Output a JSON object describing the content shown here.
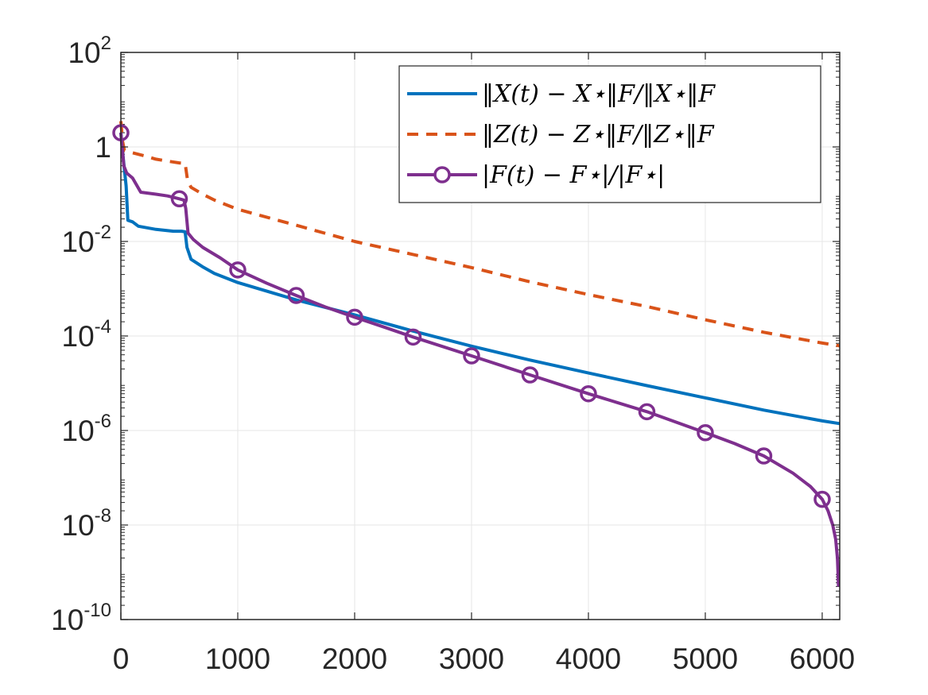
{
  "chart_data": {
    "type": "line",
    "title": "",
    "xlabel": "",
    "ylabel": "",
    "xlim": [
      0,
      6150
    ],
    "ylim": [
      1e-10,
      100
    ],
    "yscale": "log",
    "grid": true,
    "legend_position": "top-right",
    "x_ticks": [
      0,
      1000,
      2000,
      3000,
      4000,
      5000,
      6000
    ],
    "x_tick_labels": [
      "0",
      "1000",
      "2000",
      "3000",
      "4000",
      "5000",
      "6000"
    ],
    "y_ticks": [
      {
        "value": 1e-10,
        "base": "10",
        "exp": "-10"
      },
      {
        "value": 1e-08,
        "base": "10",
        "exp": "-8"
      },
      {
        "value": 1e-06,
        "base": "10",
        "exp": "-6"
      },
      {
        "value": 0.0001,
        "base": "10",
        "exp": "-4"
      },
      {
        "value": 0.01,
        "base": "10",
        "exp": "-2"
      },
      {
        "value": 1,
        "base": "1",
        "exp": ""
      },
      {
        "value": 100,
        "base": "10",
        "exp": "2"
      }
    ],
    "series": [
      {
        "name": "‖X(t) − X⋆‖F/‖X⋆‖F",
        "color": "#0072BD",
        "style": "solid",
        "marker": "none",
        "points": [
          [
            0,
            2.0
          ],
          [
            20,
            0.6
          ],
          [
            45,
            0.15
          ],
          [
            60,
            0.028
          ],
          [
            100,
            0.026
          ],
          [
            150,
            0.021
          ],
          [
            300,
            0.018
          ],
          [
            450,
            0.0165
          ],
          [
            520,
            0.0165
          ],
          [
            550,
            0.016
          ],
          [
            565,
            0.0075
          ],
          [
            600,
            0.0042
          ],
          [
            700,
            0.0029
          ],
          [
            800,
            0.0021
          ],
          [
            1000,
            0.00135
          ],
          [
            1500,
            0.00058
          ],
          [
            2000,
            0.00028
          ],
          [
            2500,
            0.000127
          ],
          [
            3000,
            6.1e-05
          ],
          [
            3500,
            3.1e-05
          ],
          [
            4000,
            1.65e-05
          ],
          [
            4500,
            8.9e-06
          ],
          [
            5000,
            4.9e-06
          ],
          [
            5500,
            2.7e-06
          ],
          [
            6000,
            1.6e-06
          ],
          [
            6150,
            1.4e-06
          ]
        ]
      },
      {
        "name": "‖Z(t) − Z⋆‖F/‖Z⋆‖F",
        "color": "#D95319",
        "style": "dashed",
        "marker": "none",
        "points": [
          [
            0,
            3.5
          ],
          [
            15,
            1.3
          ],
          [
            30,
            0.85
          ],
          [
            100,
            0.75
          ],
          [
            200,
            0.65
          ],
          [
            300,
            0.55
          ],
          [
            400,
            0.5
          ],
          [
            500,
            0.46
          ],
          [
            550,
            0.45
          ],
          [
            570,
            0.2
          ],
          [
            600,
            0.14
          ],
          [
            700,
            0.1
          ],
          [
            800,
            0.075
          ],
          [
            1000,
            0.048
          ],
          [
            1500,
            0.022
          ],
          [
            2000,
            0.01
          ],
          [
            2500,
            0.0053
          ],
          [
            3000,
            0.0028
          ],
          [
            3500,
            0.0014
          ],
          [
            4000,
            0.00075
          ],
          [
            4500,
            0.00042
          ],
          [
            5000,
            0.00022
          ],
          [
            5500,
            0.00012
          ],
          [
            6000,
            7.1e-05
          ],
          [
            6150,
            6.2e-05
          ]
        ]
      },
      {
        "name": "|F(t) − F⋆|/|F⋆|",
        "color": "#7E2F8E",
        "style": "solid",
        "marker": "circle",
        "markers": [
          [
            0,
            2.0
          ],
          [
            500,
            0.08
          ],
          [
            1000,
            0.0025
          ],
          [
            1500,
            0.00072
          ],
          [
            2000,
            0.00025
          ],
          [
            2500,
            9.5e-05
          ],
          [
            3000,
            3.8e-05
          ],
          [
            3500,
            1.5e-05
          ],
          [
            4000,
            6e-06
          ],
          [
            4500,
            2.5e-06
          ],
          [
            5000,
            9e-07
          ],
          [
            5500,
            2.9e-07
          ],
          [
            6000,
            3.5e-08
          ]
        ],
        "points": [
          [
            0,
            2.0
          ],
          [
            25,
            0.4
          ],
          [
            50,
            0.28
          ],
          [
            100,
            0.22
          ],
          [
            170,
            0.11
          ],
          [
            300,
            0.1
          ],
          [
            400,
            0.092
          ],
          [
            500,
            0.08
          ],
          [
            540,
            0.075
          ],
          [
            555,
            0.05
          ],
          [
            575,
            0.015
          ],
          [
            620,
            0.011
          ],
          [
            700,
            0.0075
          ],
          [
            850,
            0.0045
          ],
          [
            1000,
            0.0025
          ],
          [
            1250,
            0.0013
          ],
          [
            1500,
            0.00072
          ],
          [
            1750,
            0.00041
          ],
          [
            2000,
            0.00025
          ],
          [
            2250,
            0.000155
          ],
          [
            2500,
            9.5e-05
          ],
          [
            3000,
            3.8e-05
          ],
          [
            3500,
            1.5e-05
          ],
          [
            4000,
            6e-06
          ],
          [
            4500,
            2.5e-06
          ],
          [
            5000,
            9e-07
          ],
          [
            5250,
            5.3e-07
          ],
          [
            5500,
            2.9e-07
          ],
          [
            5750,
            1.25e-07
          ],
          [
            5900,
            6.5e-08
          ],
          [
            6000,
            3.5e-08
          ],
          [
            6050,
            2e-08
          ],
          [
            6090,
            1e-08
          ],
          [
            6115,
            5e-09
          ],
          [
            6130,
            2e-09
          ],
          [
            6140,
            5e-10
          ]
        ]
      }
    ]
  }
}
